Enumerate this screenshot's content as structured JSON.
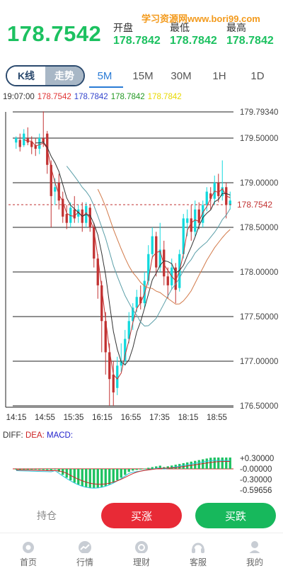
{
  "quote": {
    "price": "178.7542",
    "open_label": "开盘",
    "open_value": "178.7842",
    "low_label": "最低",
    "low_value": "178.7842",
    "high_label": "最高",
    "high_value": "178.7842"
  },
  "watermark": "学习资源网www.bori99.com",
  "mode_toggle": {
    "kline": "K线",
    "trend": "走势"
  },
  "periods": [
    "5M",
    "15M",
    "30M",
    "1H",
    "1D"
  ],
  "active_period": "5M",
  "ohlc_bar": {
    "time": "19:07:00",
    "v1": "178.7542",
    "v2": "178.7842",
    "v3": "178.7842",
    "v4": "178.7842",
    "colors": [
      "#e03434",
      "#3344cc",
      "#229922",
      "#f0e000"
    ]
  },
  "chart_data": {
    "type": "candlestick",
    "y_ticks": [
      "179.79340",
      "179.50000",
      "179.00000",
      "178.50000",
      "178.00000",
      "177.50000",
      "177.00000",
      "176.50000"
    ],
    "x_ticks": [
      "14:15",
      "14:55",
      "15:35",
      "16:15",
      "16:55",
      "17:35",
      "18:15",
      "18:55"
    ],
    "last_price_label": "178.7542",
    "ylim": [
      176.5,
      179.7934
    ],
    "colors": {
      "up": "#11d9dd",
      "down": "#c23232",
      "ma1": "#c23232",
      "ma2": "#333333",
      "ma3": "#5a9ea8",
      "ma4": "#d27a4a"
    }
  },
  "macd": {
    "diff_label": "DIFF:",
    "dea_label": "DEA:",
    "macd_label": "MACD:",
    "y_ticks": [
      "+0.30000",
      "-0.00000",
      "-0.30000",
      "-0.59656"
    ],
    "colors": {
      "diff": "#333333",
      "dea": "#cc2222",
      "macd": "#2222cc",
      "bar_up": "#1cc160",
      "bar_down": "#1cc160"
    }
  },
  "actions": {
    "hold_label": "持仓",
    "buy_up_label": "买涨",
    "buy_up_color": "#e82a36",
    "buy_down_label": "买跌",
    "buy_down_color": "#17b85c"
  },
  "nav": [
    {
      "label": "首页",
      "icon": "home-icon"
    },
    {
      "label": "行情",
      "icon": "market-icon"
    },
    {
      "label": "理财",
      "icon": "finance-icon"
    },
    {
      "label": "客服",
      "icon": "support-icon"
    },
    {
      "label": "我的",
      "icon": "profile-icon"
    }
  ]
}
